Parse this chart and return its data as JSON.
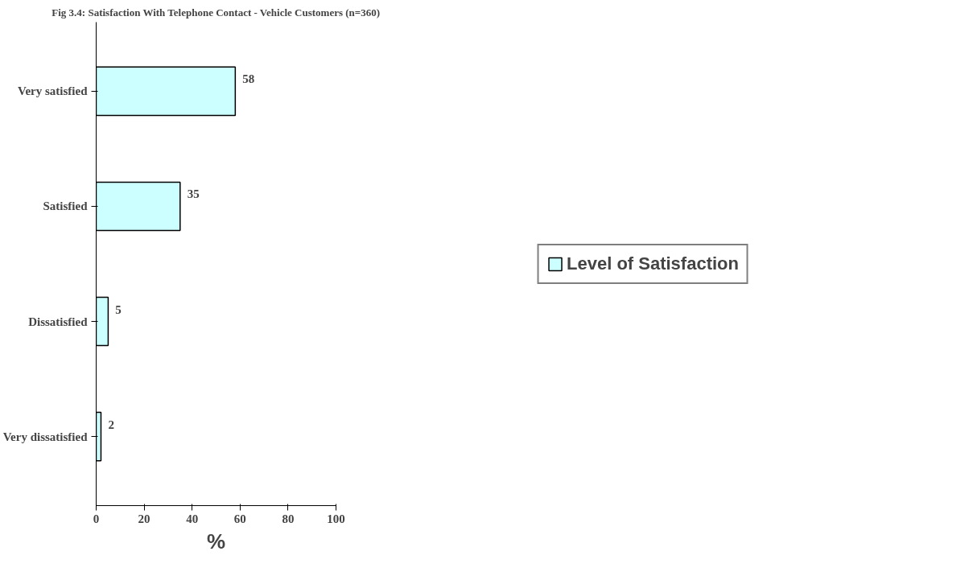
{
  "chart_data": {
    "type": "bar",
    "orientation": "horizontal",
    "title": "Fig 3.4: Satisfaction With Telephone Contact - Vehicle Customers (n=360)",
    "xlabel": "%",
    "categories": [
      "Very satisfied",
      "Satisfied",
      "Dissatisfied",
      "Very dissatisfied"
    ],
    "series": [
      {
        "name": "Level of Satisfaction",
        "color": "#ccffff",
        "values": [
          58,
          35,
          5,
          2
        ]
      }
    ],
    "xlim": [
      0,
      100
    ],
    "xticks": [
      0,
      20,
      40,
      60,
      80,
      100
    ],
    "data_labels": true,
    "legend": "right",
    "grid": false
  }
}
